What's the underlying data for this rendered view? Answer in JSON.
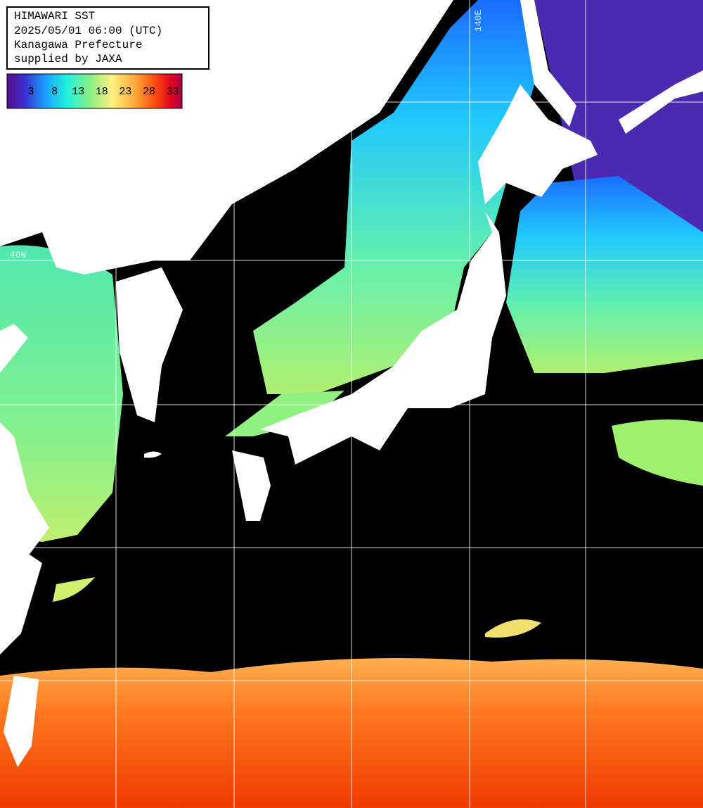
{
  "header": {
    "lines": [
      "HIMAWARI SST",
      "2025/05/01 06:00 (UTC)",
      "Kanagawa Prefecture",
      "supplied by JAXA"
    ]
  },
  "colorbar": {
    "labels": [
      3,
      8,
      13,
      18,
      23,
      28,
      33
    ]
  },
  "grid_labels": {
    "latitude": "40N",
    "longitude": "140E"
  }
}
